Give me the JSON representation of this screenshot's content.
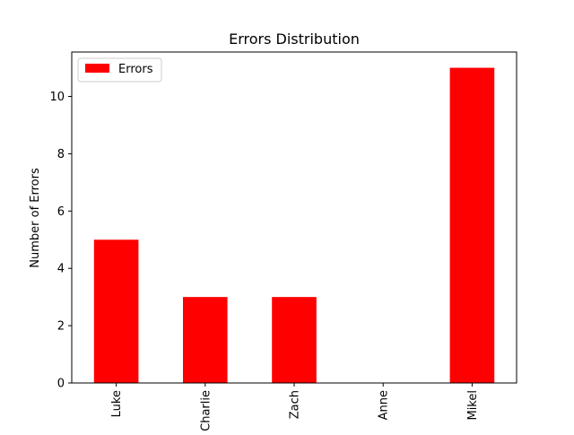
{
  "chart_data": {
    "type": "bar",
    "title": "Errors Distribution",
    "xlabel": "",
    "ylabel": "Number of Errors",
    "categories": [
      "Luke",
      "Charlie",
      "Zach",
      "Anne",
      "Mikel"
    ],
    "series": [
      {
        "name": "Errors",
        "values": [
          5,
          3,
          3,
          0,
          11
        ],
        "color": "#ff0000"
      }
    ],
    "ylim": [
      0,
      11.55
    ],
    "yticks": [
      0,
      2,
      4,
      6,
      8,
      10
    ],
    "grid": false,
    "legend": "top-left"
  }
}
